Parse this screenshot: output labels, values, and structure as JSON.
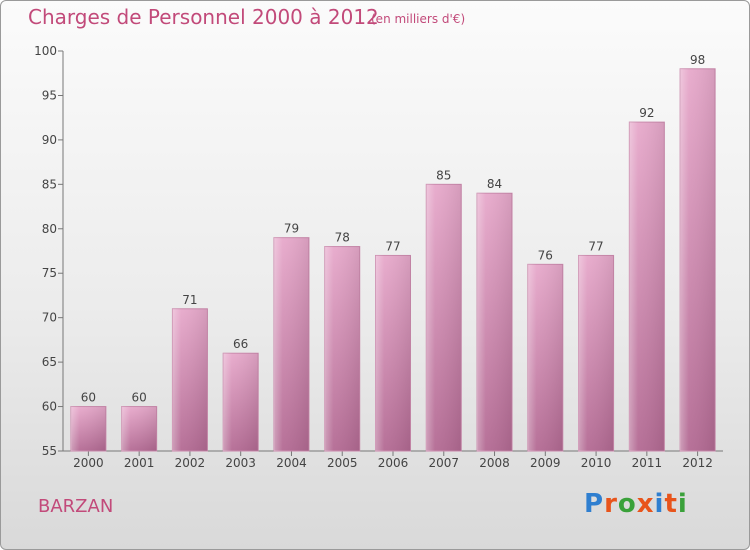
{
  "title": "Charges de Personnel 2000 à 2012",
  "subtitle": "(en milliers d'€)",
  "commune": "BARZAN",
  "brand": {
    "text": "Proxiti",
    "letter_colors": [
      "#2f7fd0",
      "#e8541b",
      "#3aa13a",
      "#e8541b",
      "#2f7fd0",
      "#e8541b",
      "#3aa13a"
    ]
  },
  "colors": {
    "bar": "#d98bb6",
    "text": "#c24a7a"
  },
  "chart_data": {
    "type": "bar",
    "categories": [
      "2000",
      "2001",
      "2002",
      "2003",
      "2004",
      "2005",
      "2006",
      "2007",
      "2008",
      "2009",
      "2010",
      "2011",
      "2012"
    ],
    "values": [
      60,
      60,
      71,
      66,
      79,
      78,
      77,
      85,
      84,
      76,
      77,
      92,
      98
    ],
    "ylim": [
      55,
      100
    ],
    "yticks": [
      55,
      60,
      65,
      70,
      75,
      80,
      85,
      90,
      95,
      100
    ],
    "grid": false,
    "title": "Charges de Personnel 2000 à 2012",
    "subtitle": "(en milliers d'€)"
  }
}
